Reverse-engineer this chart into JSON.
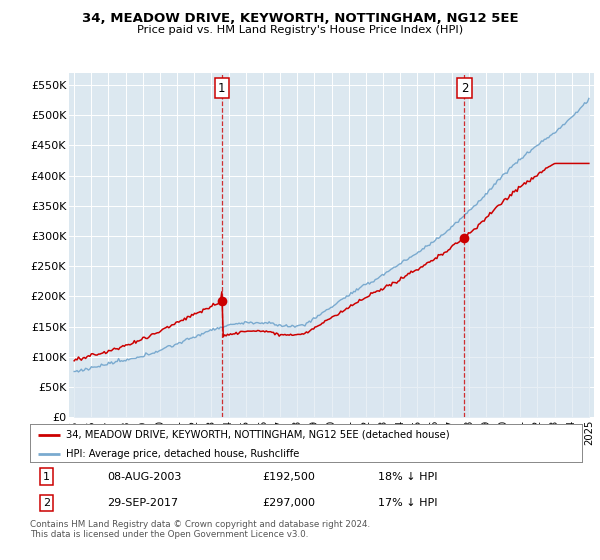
{
  "title": "34, MEADOW DRIVE, KEYWORTH, NOTTINGHAM, NG12 5EE",
  "subtitle": "Price paid vs. HM Land Registry's House Price Index (HPI)",
  "yticks": [
    0,
    50000,
    100000,
    150000,
    200000,
    250000,
    300000,
    350000,
    400000,
    450000,
    500000,
    550000
  ],
  "ylim": [
    0,
    570000
  ],
  "year_start": 1995,
  "year_end": 2025,
  "transaction1": {
    "date": "08-AUG-2003",
    "price": 192500,
    "hpi_diff": "18% ↓ HPI",
    "marker_x": 2003.6,
    "marker_y": 192500
  },
  "transaction2": {
    "date": "29-SEP-2017",
    "price": 297000,
    "hpi_diff": "17% ↓ HPI",
    "marker_x": 2017.75,
    "marker_y": 297000
  },
  "legend_property": "34, MEADOW DRIVE, KEYWORTH, NOTTINGHAM, NG12 5EE (detached house)",
  "legend_hpi": "HPI: Average price, detached house, Rushcliffe",
  "footnote": "Contains HM Land Registry data © Crown copyright and database right 2024.\nThis data is licensed under the Open Government Licence v3.0.",
  "property_line_color": "#cc0000",
  "hpi_line_color": "#7aaacf",
  "hpi_fill_color": "#dae6f0",
  "vline_color": "#cc0000",
  "background_color": "#ffffff",
  "plot_bg_color": "#dce8f0",
  "grid_color": "#ffffff",
  "marker_box_color": "#cc0000",
  "xlim_left": 1994.7,
  "xlim_right": 2025.3
}
